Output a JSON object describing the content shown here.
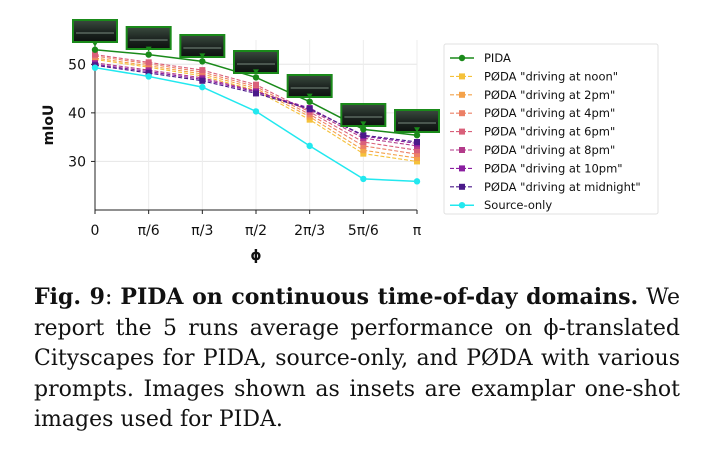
{
  "chart_data": {
    "type": "line",
    "xlabel": "ϕ",
    "ylabel": "mIoU",
    "ylim": [
      20,
      55
    ],
    "yticks": [
      "30",
      "40",
      "50"
    ],
    "categories": [
      "0",
      "π/6",
      "π/3",
      "π/2",
      "2π/3",
      "5π/6",
      "π"
    ],
    "grid": true,
    "legend_position": "right",
    "series": [
      {
        "name": "PIDA",
        "color": "#1a8a1a",
        "marker": "circle",
        "linestyle": "solid",
        "values": [
          53.0,
          52.0,
          50.6,
          47.3,
          42.3,
          36.6,
          35.4
        ]
      },
      {
        "name": "PØDA \"driving at noon\"",
        "color": "#f5c13a",
        "marker": "square",
        "linestyle": "dashed",
        "values": [
          51.0,
          49.4,
          47.6,
          44.6,
          38.6,
          31.6,
          30.0
        ]
      },
      {
        "name": "PØDA \"driving at 2pm\"",
        "color": "#f4a24a",
        "marker": "square",
        "linestyle": "dashed",
        "values": [
          51.3,
          49.7,
          48.0,
          45.0,
          39.2,
          32.3,
          30.7
        ]
      },
      {
        "name": "PØDA \"driving at 4pm\"",
        "color": "#ec8066",
        "marker": "square",
        "linestyle": "dashed",
        "values": [
          51.7,
          50.1,
          48.4,
          45.4,
          39.7,
          33.2,
          31.5
        ]
      },
      {
        "name": "PØDA \"driving at 6pm\"",
        "color": "#d9607a",
        "marker": "square",
        "linestyle": "dashed",
        "values": [
          52.0,
          50.4,
          48.8,
          45.8,
          40.2,
          34.0,
          32.3
        ]
      },
      {
        "name": "PØDA \"driving at 8pm\"",
        "color": "#b33a8a",
        "marker": "square",
        "linestyle": "dashed",
        "values": [
          50.3,
          48.8,
          47.2,
          44.5,
          40.6,
          34.8,
          33.2
        ]
      },
      {
        "name": "PØDA \"driving at 10pm\"",
        "color": "#8a1ea0",
        "marker": "square",
        "linestyle": "dashed",
        "values": [
          50.0,
          48.5,
          46.9,
          44.3,
          41.0,
          35.2,
          33.7
        ]
      },
      {
        "name": "PØDA \"driving at midnight\"",
        "color": "#4b1a8a",
        "marker": "square",
        "linestyle": "dashed",
        "values": [
          49.8,
          48.2,
          46.6,
          44.0,
          40.8,
          35.4,
          34.0
        ]
      },
      {
        "name": "Source-only",
        "color": "#22e8ef",
        "marker": "circle",
        "linestyle": "solid",
        "values": [
          49.3,
          47.5,
          45.3,
          40.3,
          33.2,
          26.4,
          25.9
        ]
      }
    ]
  },
  "insets": [
    {
      "name": "inset-0"
    },
    {
      "name": "inset-pi-6"
    },
    {
      "name": "inset-pi-3"
    },
    {
      "name": "inset-pi-2"
    },
    {
      "name": "inset-2pi-3"
    },
    {
      "name": "inset-5pi-6"
    },
    {
      "name": "inset-pi"
    }
  ],
  "caption": {
    "fig_label": "Fig. 9",
    "colon": ": ",
    "title": "PIDA on continuous time-of-day domains.",
    "body": " We report the 5 runs average performance on ϕ-translated Cityscapes for PIDA, source-only, and PØDA with various prompts. Images shown as insets are examplar one-shot images used for PIDA."
  }
}
